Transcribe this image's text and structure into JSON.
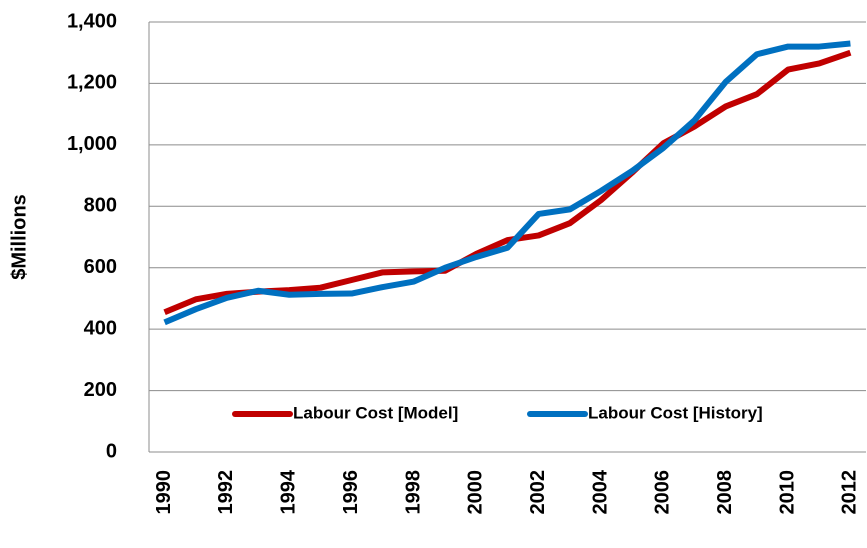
{
  "chart_data": {
    "type": "line",
    "y_label": "$Millions",
    "categories": [
      "1990",
      null,
      "1992",
      null,
      "1994",
      null,
      "1996",
      null,
      "1998",
      null,
      "2000",
      null,
      "2002",
      null,
      "2004",
      null,
      "2006",
      null,
      "2008",
      null,
      "2010",
      null,
      "2012"
    ],
    "series": [
      {
        "name": "Labour Cost [Model]",
        "color": "#c00000",
        "values": [
          455,
          497,
          515,
          522,
          527,
          535,
          560,
          585,
          588,
          590,
          645,
          690,
          705,
          745,
          820,
          910,
          1005,
          1060,
          1125,
          1165,
          1245,
          1265,
          1300
        ]
      },
      {
        "name": "Labour Cost [History]",
        "color": "#0070c0",
        "values": [
          422,
          465,
          502,
          525,
          512,
          515,
          516,
          537,
          555,
          600,
          635,
          665,
          775,
          790,
          850,
          915,
          990,
          1080,
          1205,
          1295,
          1320,
          1320,
          1330
        ]
      }
    ],
    "ylim": [
      0,
      1400
    ],
    "yticks": [
      0,
      200,
      400,
      600,
      800,
      {
        "value": 1000,
        "label": "1,000"
      },
      {
        "value": 1200,
        "label": "1,200"
      },
      {
        "value": 1400,
        "label": "1,400"
      }
    ],
    "grid": true,
    "legend": "bottom"
  }
}
